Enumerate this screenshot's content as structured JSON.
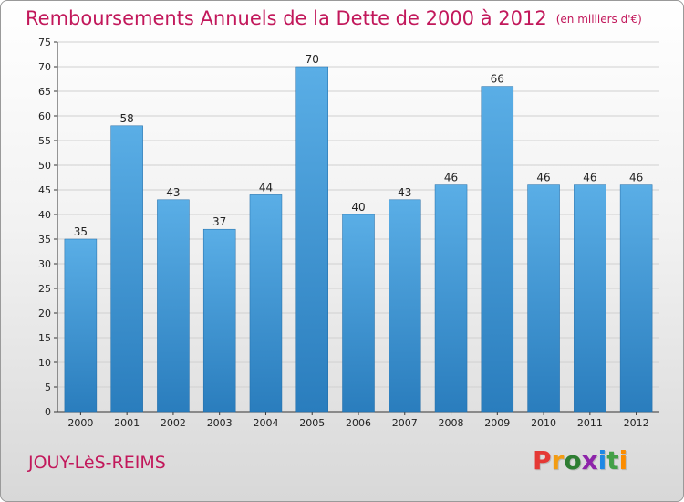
{
  "header": {
    "title": "Remboursements Annuels de la Dette de 2000 à 2012",
    "subtitle": "(en milliers d'€)"
  },
  "footer": {
    "location": "JOUY-LèS-REIMS",
    "brand": "Proxiti"
  },
  "colors": {
    "title": "#c2185b",
    "bar_top": "#5aaee6",
    "bar_bottom": "#2a7dbd",
    "grid": "#d0d0d0",
    "axis": "#333333",
    "brand_letters": [
      "#e53935",
      "#f39c12",
      "#2e7d32",
      "#8e24aa",
      "#1e88e5",
      "#43a047",
      "#fb8c00"
    ]
  },
  "chart_data": {
    "type": "bar",
    "title": "Remboursements Annuels de la Dette de 2000 à 2012",
    "subtitle": "(en milliers d'€)",
    "xlabel": "",
    "ylabel": "",
    "categories": [
      "2000",
      "2001",
      "2002",
      "2003",
      "2004",
      "2005",
      "2006",
      "2007",
      "2008",
      "2009",
      "2010",
      "2011",
      "2012"
    ],
    "values": [
      35,
      58,
      43,
      37,
      44,
      70,
      40,
      43,
      46,
      66,
      46,
      46,
      46
    ],
    "ylim": [
      0,
      75
    ],
    "yticks": [
      0,
      5,
      10,
      15,
      20,
      25,
      30,
      35,
      40,
      45,
      50,
      55,
      60,
      65,
      70,
      75
    ],
    "grid": true,
    "legend": "none"
  }
}
